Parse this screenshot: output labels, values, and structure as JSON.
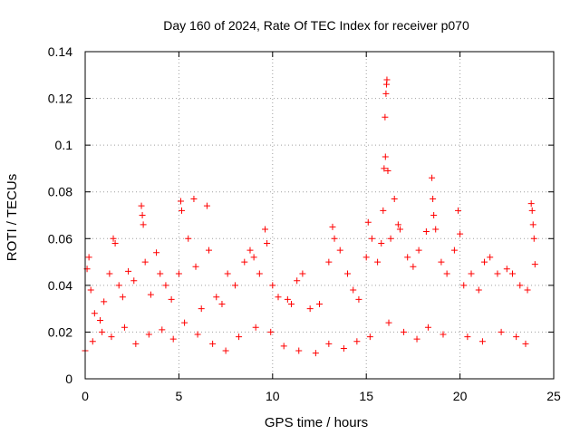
{
  "chart_data": {
    "type": "scatter",
    "title": "Day 160 of 2024, Rate Of TEC Index for receiver p070",
    "xlabel": "GPS time / hours",
    "ylabel": "ROTI / TECUs",
    "xlim": [
      0,
      25
    ],
    "ylim": [
      0,
      0.14
    ],
    "x_ticks": [
      {
        "value": 0,
        "label": "0"
      },
      {
        "value": 5,
        "label": "5"
      },
      {
        "value": 10,
        "label": "10"
      },
      {
        "value": 15,
        "label": "15"
      },
      {
        "value": 20,
        "label": "20"
      },
      {
        "value": 25,
        "label": "25"
      }
    ],
    "y_ticks": [
      {
        "value": 0,
        "label": "0"
      },
      {
        "value": 0.02,
        "label": "0.02"
      },
      {
        "value": 0.04,
        "label": "0.04"
      },
      {
        "value": 0.06,
        "label": "0.06"
      },
      {
        "value": 0.08,
        "label": "0.08"
      },
      {
        "value": 0.1,
        "label": "0.1"
      },
      {
        "value": 0.12,
        "label": "0.12"
      },
      {
        "value": 0.14,
        "label": "0.14"
      }
    ],
    "grid": true,
    "marker": "+",
    "color": "#ff0000",
    "series": [
      {
        "name": "ROTI",
        "points": [
          [
            0.0,
            0.012
          ],
          [
            0.1,
            0.047
          ],
          [
            0.2,
            0.052
          ],
          [
            0.3,
            0.038
          ],
          [
            0.5,
            0.028
          ],
          [
            0.8,
            0.025
          ],
          [
            1.0,
            0.033
          ],
          [
            1.3,
            0.045
          ],
          [
            1.5,
            0.06
          ],
          [
            1.6,
            0.058
          ],
          [
            1.8,
            0.04
          ],
          [
            2.0,
            0.035
          ],
          [
            2.3,
            0.046
          ],
          [
            2.6,
            0.042
          ],
          [
            3.0,
            0.074
          ],
          [
            3.05,
            0.07
          ],
          [
            3.1,
            0.066
          ],
          [
            3.2,
            0.05
          ],
          [
            3.5,
            0.036
          ],
          [
            3.8,
            0.054
          ],
          [
            4.0,
            0.045
          ],
          [
            4.3,
            0.04
          ],
          [
            4.6,
            0.034
          ],
          [
            5.0,
            0.045
          ],
          [
            5.1,
            0.076
          ],
          [
            5.15,
            0.072
          ],
          [
            5.5,
            0.06
          ],
          [
            5.8,
            0.077
          ],
          [
            5.9,
            0.048
          ],
          [
            6.2,
            0.03
          ],
          [
            6.5,
            0.074
          ],
          [
            6.6,
            0.055
          ],
          [
            7.0,
            0.035
          ],
          [
            7.3,
            0.032
          ],
          [
            7.6,
            0.045
          ],
          [
            8.0,
            0.04
          ],
          [
            8.5,
            0.05
          ],
          [
            8.8,
            0.055
          ],
          [
            9.0,
            0.052
          ],
          [
            9.3,
            0.045
          ],
          [
            9.6,
            0.064
          ],
          [
            9.7,
            0.058
          ],
          [
            10.0,
            0.04
          ],
          [
            10.3,
            0.035
          ],
          [
            10.8,
            0.034
          ],
          [
            11.0,
            0.032
          ],
          [
            11.3,
            0.042
          ],
          [
            11.6,
            0.045
          ],
          [
            12.0,
            0.03
          ],
          [
            12.5,
            0.032
          ],
          [
            13.0,
            0.05
          ],
          [
            13.2,
            0.065
          ],
          [
            13.3,
            0.06
          ],
          [
            13.6,
            0.055
          ],
          [
            14.0,
            0.045
          ],
          [
            14.3,
            0.038
          ],
          [
            14.6,
            0.034
          ],
          [
            15.0,
            0.052
          ],
          [
            15.1,
            0.067
          ],
          [
            15.3,
            0.06
          ],
          [
            15.6,
            0.05
          ],
          [
            15.8,
            0.058
          ],
          [
            15.9,
            0.072
          ],
          [
            15.95,
            0.09
          ],
          [
            16.0,
            0.112
          ],
          [
            16.02,
            0.095
          ],
          [
            16.05,
            0.122
          ],
          [
            16.08,
            0.126
          ],
          [
            16.1,
            0.128
          ],
          [
            16.15,
            0.089
          ],
          [
            16.3,
            0.06
          ],
          [
            16.5,
            0.077
          ],
          [
            16.7,
            0.066
          ],
          [
            16.8,
            0.064
          ],
          [
            17.2,
            0.052
          ],
          [
            17.5,
            0.048
          ],
          [
            17.8,
            0.055
          ],
          [
            18.2,
            0.063
          ],
          [
            18.5,
            0.086
          ],
          [
            18.55,
            0.077
          ],
          [
            18.6,
            0.07
          ],
          [
            18.7,
            0.064
          ],
          [
            19.0,
            0.05
          ],
          [
            19.3,
            0.045
          ],
          [
            19.7,
            0.055
          ],
          [
            19.9,
            0.072
          ],
          [
            20.0,
            0.062
          ],
          [
            20.2,
            0.04
          ],
          [
            20.6,
            0.045
          ],
          [
            21.0,
            0.038
          ],
          [
            21.3,
            0.05
          ],
          [
            21.6,
            0.052
          ],
          [
            22.0,
            0.045
          ],
          [
            22.5,
            0.047
          ],
          [
            22.8,
            0.045
          ],
          [
            23.2,
            0.04
          ],
          [
            23.6,
            0.038
          ],
          [
            23.8,
            0.075
          ],
          [
            23.85,
            0.072
          ],
          [
            23.9,
            0.066
          ],
          [
            23.95,
            0.06
          ],
          [
            24.0,
            0.049
          ],
          [
            0.4,
            0.016
          ],
          [
            0.9,
            0.02
          ],
          [
            1.4,
            0.018
          ],
          [
            2.1,
            0.022
          ],
          [
            2.7,
            0.015
          ],
          [
            3.4,
            0.019
          ],
          [
            4.1,
            0.021
          ],
          [
            4.7,
            0.017
          ],
          [
            5.3,
            0.024
          ],
          [
            6.0,
            0.019
          ],
          [
            6.8,
            0.015
          ],
          [
            7.5,
            0.012
          ],
          [
            8.2,
            0.018
          ],
          [
            9.1,
            0.022
          ],
          [
            9.9,
            0.02
          ],
          [
            10.6,
            0.014
          ],
          [
            11.4,
            0.012
          ],
          [
            12.3,
            0.011
          ],
          [
            13.0,
            0.015
          ],
          [
            13.8,
            0.013
          ],
          [
            14.5,
            0.016
          ],
          [
            15.2,
            0.018
          ],
          [
            16.2,
            0.024
          ],
          [
            17.0,
            0.02
          ],
          [
            17.7,
            0.017
          ],
          [
            18.3,
            0.022
          ],
          [
            19.1,
            0.019
          ],
          [
            20.4,
            0.018
          ],
          [
            21.2,
            0.016
          ],
          [
            22.2,
            0.02
          ],
          [
            23.0,
            0.018
          ],
          [
            23.5,
            0.015
          ]
        ]
      }
    ]
  }
}
